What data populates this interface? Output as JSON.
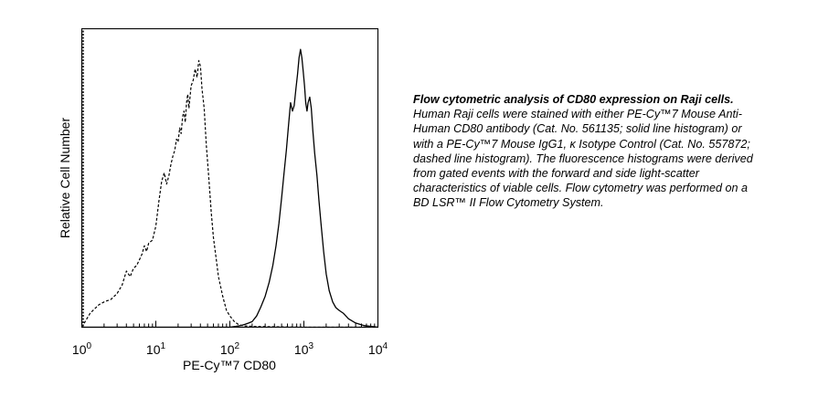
{
  "chart_data": {
    "type": "line",
    "xlabel": "PE-Cy™7 CD80",
    "ylabel": "Relative Cell Number",
    "x_scale": "log",
    "xlim": [
      1,
      10000
    ],
    "ylim": [
      0,
      1.0
    ],
    "x_ticks": [
      {
        "value": 1,
        "base": "10",
        "exp": "0"
      },
      {
        "value": 10,
        "base": "10",
        "exp": "1"
      },
      {
        "value": 100,
        "base": "10",
        "exp": "2"
      },
      {
        "value": 1000,
        "base": "10",
        "exp": "3"
      },
      {
        "value": 10000,
        "base": "10",
        "exp": "4"
      }
    ],
    "y_ticks_labeled": false,
    "series": [
      {
        "style": "dashed",
        "color": "#000000",
        "x": [
          1.0,
          1.3,
          1.7,
          2.0,
          2.5,
          3.0,
          3.5,
          4.0,
          4.5,
          5.0,
          5.5,
          6.0,
          6.5,
          7.0,
          7.5,
          8.0,
          9.0,
          10.0,
          11.0,
          12.0,
          13.0,
          14.0,
          15.0,
          16.0,
          17.0,
          18.0,
          19.0,
          20.0,
          21.0,
          22.0,
          23.0,
          24.0,
          25.0,
          26.0,
          27.0,
          28.0,
          30.0,
          32.0,
          34.0,
          36.0,
          38.0,
          40.0,
          42.0,
          45.0,
          48.0,
          52.0,
          56.0,
          60.0,
          65.0,
          70.0,
          80.0,
          90.0,
          100.0,
          115.0,
          130.0,
          150.0,
          200.0,
          300.0,
          500.0,
          1000.0,
          3000.0,
          10000.0
        ],
        "y": [
          0.0,
          0.05,
          0.08,
          0.09,
          0.1,
          0.12,
          0.15,
          0.2,
          0.18,
          0.21,
          0.22,
          0.24,
          0.26,
          0.29,
          0.27,
          0.3,
          0.31,
          0.36,
          0.45,
          0.52,
          0.55,
          0.51,
          0.54,
          0.58,
          0.61,
          0.63,
          0.67,
          0.66,
          0.71,
          0.69,
          0.75,
          0.77,
          0.73,
          0.8,
          0.83,
          0.78,
          0.86,
          0.88,
          0.92,
          0.89,
          0.95,
          0.93,
          0.85,
          0.78,
          0.65,
          0.53,
          0.41,
          0.32,
          0.25,
          0.18,
          0.11,
          0.06,
          0.04,
          0.02,
          0.01,
          0.005,
          0.003,
          0.002,
          0.001,
          0.0,
          0.0,
          0.0
        ]
      },
      {
        "style": "solid",
        "color": "#000000",
        "x": [
          1.0,
          100.0,
          120.0,
          140.0,
          160.0,
          180.0,
          200.0,
          230.0,
          260.0,
          300.0,
          340.0,
          380.0,
          420.0,
          460.0,
          500.0,
          540.0,
          580.0,
          620.0,
          660.0,
          700.0,
          740.0,
          780.0,
          820.0,
          860.0,
          900.0,
          940.0,
          980.0,
          1020.0,
          1060.0,
          1100.0,
          1140.0,
          1200.0,
          1260.0,
          1320.0,
          1400.0,
          1500.0,
          1600.0,
          1700.0,
          1850.0,
          2000.0,
          2200.0,
          2450.0,
          2700.0,
          3000.0,
          3400.0,
          4000.0,
          5000.0,
          6500.0,
          10000.0
        ],
        "y": [
          0.0,
          0.0,
          0.003,
          0.006,
          0.01,
          0.015,
          0.02,
          0.04,
          0.07,
          0.11,
          0.16,
          0.22,
          0.29,
          0.37,
          0.46,
          0.55,
          0.63,
          0.72,
          0.8,
          0.77,
          0.79,
          0.85,
          0.9,
          0.96,
          0.99,
          0.96,
          0.91,
          0.86,
          0.8,
          0.77,
          0.8,
          0.82,
          0.78,
          0.7,
          0.62,
          0.54,
          0.45,
          0.37,
          0.27,
          0.19,
          0.13,
          0.09,
          0.07,
          0.06,
          0.05,
          0.03,
          0.015,
          0.006,
          0.0
        ]
      }
    ]
  },
  "caption": {
    "title": "Flow cytometric analysis of CD80 expression on Raji cells.",
    "body": " Human Raji cells were stained with either PE-Cy™7 Mouse Anti-Human CD80 antibody (Cat. No. 561135; solid line histogram) or with a PE-Cy™7 Mouse IgG1, κ Isotype Control (Cat. No. 557872; dashed line histogram). The fluorescence histograms were derived from gated events with the forward and side light-scatter characteristics of viable cells. Flow cytometry was performed on a BD LSR™ II Flow Cytometry System."
  }
}
